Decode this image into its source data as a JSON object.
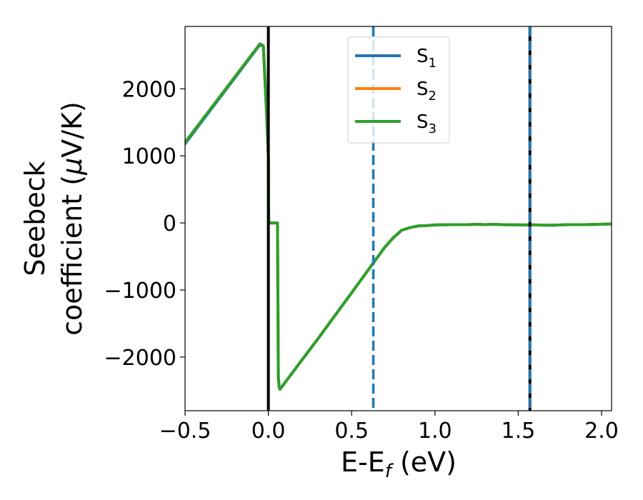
{
  "chart_data": {
    "type": "line",
    "xlabel": "E-E",
    "xlabel_sub": "f",
    "xlabel_unit": " (eV)",
    "ylabel_line1": "Seebeck",
    "ylabel_line2": "coefficient  (",
    "ylabel_mu": "μ",
    "ylabel_unit": "V/K)",
    "xlim": [
      -0.5,
      2.06
    ],
    "ylim": [
      -2800,
      2930
    ],
    "xticks": [
      -0.5,
      0.0,
      0.5,
      1.0,
      1.5,
      2.0
    ],
    "xtick_labels": [
      "−0.5",
      "0.0",
      "0.5",
      "1.0",
      "1.5",
      "2.0"
    ],
    "yticks": [
      -2000,
      -1000,
      0,
      1000,
      2000
    ],
    "ytick_labels": [
      "−2000",
      "−1000",
      "0",
      "1000",
      "2000"
    ],
    "grid": false,
    "legend_position": "top-center",
    "series": [
      {
        "name": "S",
        "sub": "1",
        "color": "#1f77b4",
        "x": [
          -0.5,
          -0.05,
          -0.03,
          -0.01,
          0.0,
          0.002,
          0.006,
          0.055,
          0.06,
          0.065,
          0.07,
          0.1,
          0.2,
          0.3,
          0.4,
          0.5,
          0.6,
          0.7,
          0.75,
          0.8,
          0.85,
          0.9,
          0.95,
          1.0,
          1.1,
          1.2,
          1.25,
          1.3,
          1.35,
          1.4,
          1.5,
          1.6,
          1.7,
          1.8,
          1.9,
          2.0,
          2.06
        ],
        "y": [
          1180,
          2660,
          2630,
          1600,
          1000,
          0,
          0,
          0,
          -2300,
          -2450,
          -2480,
          -2380,
          -2050,
          -1720,
          -1380,
          -1040,
          -700,
          -360,
          -220,
          -110,
          -70,
          -45,
          -40,
          -30,
          -25,
          -25,
          -20,
          -25,
          -20,
          -25,
          -30,
          -30,
          -35,
          -25,
          -25,
          -20,
          -15
        ]
      },
      {
        "name": "S",
        "sub": "2",
        "color": "#ff7f0e",
        "x": [
          -0.5,
          -0.05,
          -0.03,
          -0.01,
          0.0,
          0.002,
          0.006,
          0.055,
          0.06,
          0.065,
          0.07,
          0.1,
          0.2,
          0.3,
          0.4,
          0.5,
          0.6,
          0.7,
          0.75,
          0.8,
          0.85,
          0.9,
          0.95,
          1.0,
          1.1,
          1.2,
          1.25,
          1.3,
          1.35,
          1.4,
          1.5,
          1.6,
          1.7,
          1.8,
          1.9,
          2.0,
          2.06
        ],
        "y": [
          1200,
          2670,
          2640,
          1600,
          1000,
          0,
          0,
          0,
          -2300,
          -2450,
          -2480,
          -2380,
          -2050,
          -1720,
          -1380,
          -1040,
          -700,
          -360,
          -220,
          -110,
          -70,
          -45,
          -40,
          -30,
          -25,
          -25,
          -20,
          -25,
          -20,
          -25,
          -30,
          -30,
          -35,
          -25,
          -25,
          -20,
          -15
        ]
      },
      {
        "name": "S",
        "sub": "3",
        "color": "#2ca02c",
        "x": [
          -0.5,
          -0.05,
          -0.03,
          -0.01,
          0.0,
          0.002,
          0.006,
          0.055,
          0.06,
          0.065,
          0.07,
          0.1,
          0.2,
          0.3,
          0.4,
          0.5,
          0.6,
          0.7,
          0.75,
          0.8,
          0.85,
          0.9,
          0.95,
          1.0,
          1.1,
          1.2,
          1.25,
          1.3,
          1.35,
          1.4,
          1.5,
          1.6,
          1.7,
          1.8,
          1.9,
          2.0,
          2.06
        ],
        "y": [
          1200,
          2670,
          2640,
          1600,
          1000,
          0,
          0,
          0,
          -2300,
          -2450,
          -2480,
          -2380,
          -2050,
          -1720,
          -1380,
          -1040,
          -700,
          -360,
          -220,
          -110,
          -70,
          -45,
          -40,
          -30,
          -25,
          -25,
          -20,
          -25,
          -20,
          -25,
          -30,
          -30,
          -35,
          -25,
          -25,
          -20,
          -15
        ]
      }
    ],
    "vlines": [
      {
        "x": 0.0,
        "color": "#000000",
        "style": "solid"
      },
      {
        "x": 0.63,
        "color": "#1f77b4",
        "style": "dashed"
      },
      {
        "x": 1.57,
        "color": "#000000",
        "style": "solid"
      },
      {
        "x": 1.57,
        "color": "#ff7f0e",
        "style": "dashed"
      },
      {
        "x": 1.57,
        "color": "#1f77b4",
        "style": "dashed"
      }
    ]
  }
}
